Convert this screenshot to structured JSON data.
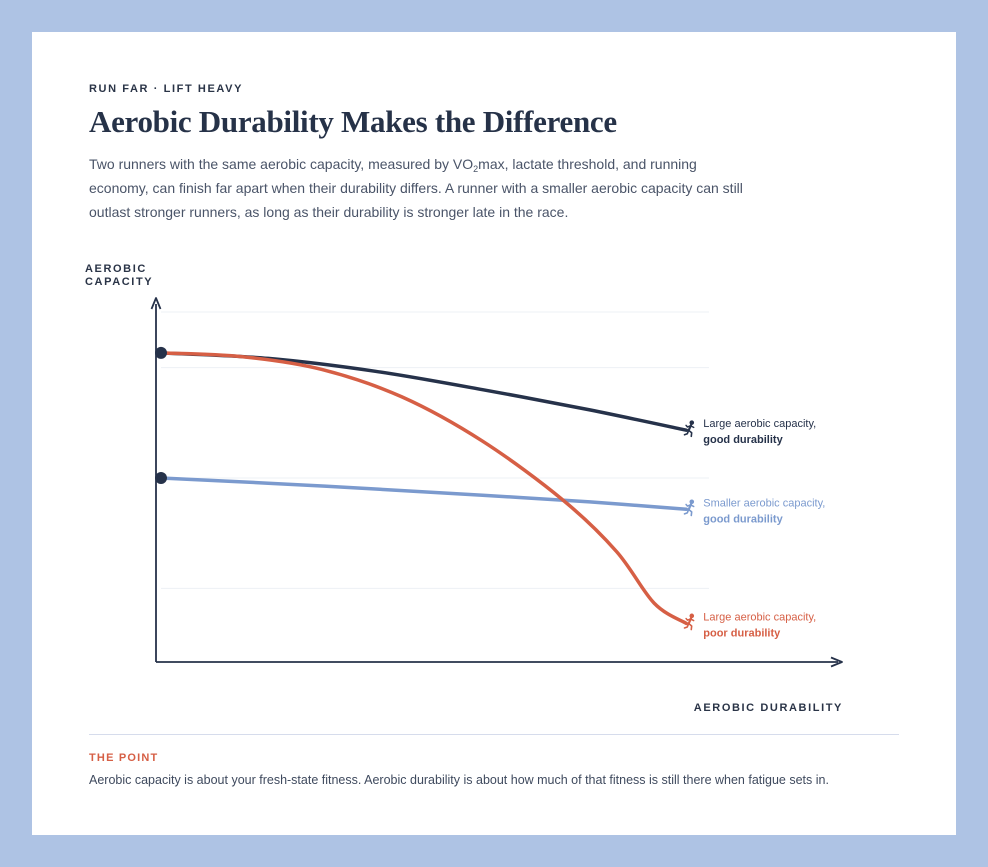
{
  "eyebrow": "RUN FAR · LIFT HEAVY",
  "title": "Aerobic Durability Makes the Difference",
  "intro": {
    "part1": "Two runners with the same aerobic capacity, measured by VO",
    "sub": "2",
    "part2": "max, lactate threshold, and running economy, can finish far apart when their durability differs. A runner with a smaller aerobic capacity can still outlast stronger runners, as long as their durability is stronger late in the race."
  },
  "chart_data": {
    "type": "line",
    "ylabel": "AEROBIC CAPACITY",
    "xlabel": "AEROBIC DURABILITY",
    "xlim": [
      0,
      100
    ],
    "ylim": [
      0,
      100
    ],
    "grid": true,
    "gridlines_y": [
      20,
      50,
      80
    ],
    "series": [
      {
        "id": "large-good",
        "label_line1": "Large aerobic capacity,",
        "label_line2": "good durability",
        "color": "#26324a",
        "start_marker": true,
        "points": [
          [
            0,
            84
          ],
          [
            20,
            82.5
          ],
          [
            40,
            79
          ],
          [
            60,
            74
          ],
          [
            80,
            68.5
          ],
          [
            98,
            63
          ]
        ]
      },
      {
        "id": "smaller-good",
        "label_line1": "Smaller aerobic capacity,",
        "label_line2": "good durability",
        "color": "#7b9ace",
        "start_marker": true,
        "points": [
          [
            0,
            50
          ],
          [
            20,
            48.6
          ],
          [
            40,
            47
          ],
          [
            60,
            45.3
          ],
          [
            80,
            43.5
          ],
          [
            98,
            41.5
          ]
        ]
      },
      {
        "id": "large-poor",
        "label_line1": "Large aerobic capacity,",
        "label_line2": "poor durability",
        "color": "#d65f45",
        "start_marker": false,
        "points": [
          [
            0,
            84
          ],
          [
            15,
            83
          ],
          [
            30,
            79.5
          ],
          [
            45,
            72
          ],
          [
            60,
            60
          ],
          [
            75,
            44
          ],
          [
            85,
            30
          ],
          [
            92,
            16
          ],
          [
            98,
            10.5
          ]
        ]
      }
    ]
  },
  "takeaway": {
    "label": "THE POINT",
    "text": "Aerobic capacity is about your fresh-state fitness. Aerobic durability is about how much of that fitness is still there when fatigue sets in."
  },
  "colors": {
    "frame": "#aec3e4",
    "navy": "#26324a",
    "blue": "#7b9ace",
    "red": "#d65f45"
  },
  "icons": {
    "series_end": "runner-icon"
  }
}
